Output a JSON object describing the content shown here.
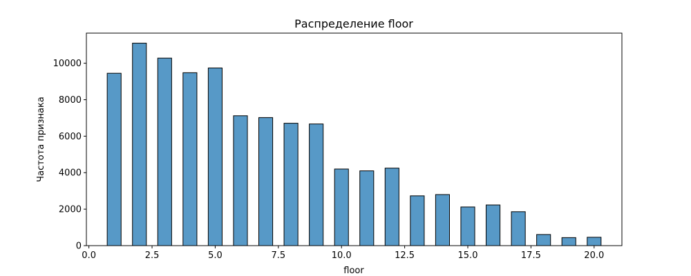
{
  "chart_data": {
    "type": "bar",
    "title": "Распределение floor",
    "xlabel": "floor",
    "ylabel": "Частота признака",
    "xlim": [
      -0.1,
      21.1
    ],
    "ylim": [
      0,
      11650
    ],
    "bar_width": 0.55,
    "x_ticks": [
      0.0,
      2.5,
      5.0,
      7.5,
      10.0,
      12.5,
      15.0,
      17.5,
      20.0
    ],
    "x_tick_labels": [
      "0.0",
      "2.5",
      "5.0",
      "7.5",
      "10.0",
      "12.5",
      "15.0",
      "17.5",
      "20.0"
    ],
    "y_ticks": [
      0,
      2000,
      4000,
      6000,
      8000,
      10000
    ],
    "y_tick_labels": [
      "0",
      "2000",
      "4000",
      "6000",
      "8000",
      "10000"
    ],
    "grid": false,
    "legend": "none",
    "bar_color": "#5799c7",
    "x": [
      1,
      2,
      3,
      4,
      5,
      6,
      7,
      8,
      9,
      10,
      11,
      12,
      13,
      14,
      15,
      16,
      17,
      18,
      19,
      20
    ],
    "values": [
      9450,
      11100,
      10280,
      9480,
      9740,
      7120,
      7020,
      6710,
      6670,
      4200,
      4100,
      4250,
      2730,
      2800,
      2120,
      2230,
      1860,
      610,
      440,
      460
    ]
  }
}
